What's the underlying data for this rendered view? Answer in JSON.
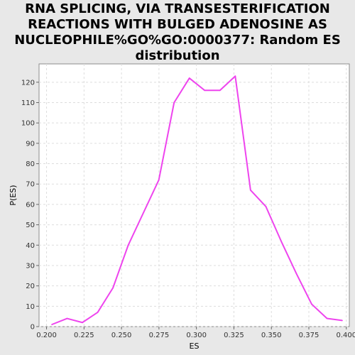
{
  "chart_data": {
    "type": "line",
    "title_lines": [
      "RNA SPLICING, VIA TRANSESTERIFICATION",
      "REACTIONS WITH BULGED ADENOSINE AS",
      "NUCLEOPHILE%GO%GO:0000377: Random ES",
      "distribution"
    ],
    "xlabel": "ES",
    "ylabel": "P(ES)",
    "xlim": [
      0.195,
      0.402
    ],
    "ylim": [
      0,
      129
    ],
    "x_ticks": [
      0.2,
      0.225,
      0.25,
      0.275,
      0.3,
      0.325,
      0.35,
      0.375,
      0.4
    ],
    "x_tick_labels": [
      "0.200",
      "0.225",
      "0.250",
      "0.275",
      "0.300",
      "0.325",
      "0.350",
      "0.375",
      "0.400"
    ],
    "y_ticks": [
      0,
      10,
      20,
      30,
      40,
      50,
      60,
      70,
      80,
      90,
      100,
      110,
      120
    ],
    "y_tick_labels": [
      "0",
      "10",
      "20",
      "30",
      "40",
      "50",
      "60",
      "70",
      "80",
      "90",
      "100",
      "110",
      "120"
    ],
    "grid": true,
    "series": [
      {
        "color": "#ee44ee",
        "x": [
          0.2035,
          0.2137,
          0.2239,
          0.2341,
          0.2443,
          0.2545,
          0.2647,
          0.2749,
          0.2851,
          0.2953,
          0.3055,
          0.3157,
          0.3259,
          0.3361,
          0.3463,
          0.3565,
          0.3667,
          0.3769,
          0.3871,
          0.3973
        ],
        "y": [
          1,
          4,
          2,
          7,
          19,
          40,
          56,
          72,
          110,
          122,
          116,
          116,
          123,
          67,
          59,
          42,
          26,
          11,
          4,
          3
        ]
      }
    ]
  }
}
